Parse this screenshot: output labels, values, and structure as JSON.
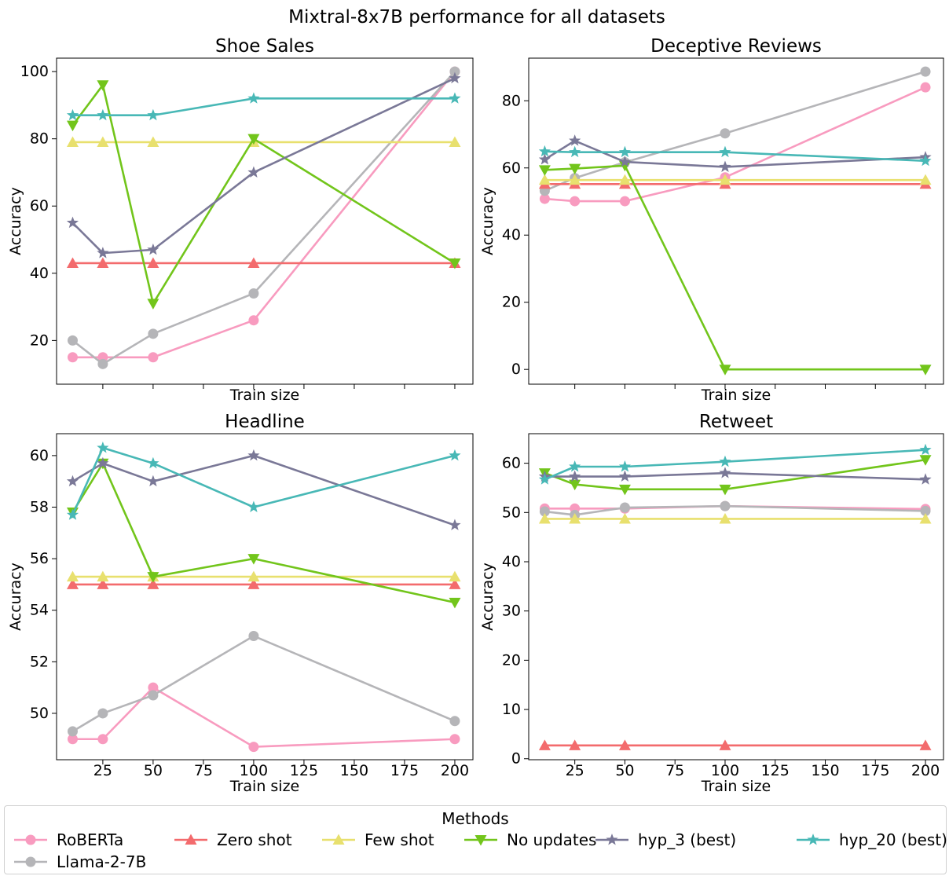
{
  "figure": {
    "title": "Mixtral-8x7B performance for all datasets"
  },
  "series_styles": [
    {
      "name": "RoBERTa",
      "color": "#f89bbf",
      "marker": "circle"
    },
    {
      "name": "Llama-2-7B",
      "color": "#b5b5b8",
      "marker": "circle"
    },
    {
      "name": "Zero shot",
      "color": "#f36b6d",
      "marker": "triangle-up"
    },
    {
      "name": "Few shot",
      "color": "#e8e06e",
      "marker": "triangle-up"
    },
    {
      "name": "No updates",
      "color": "#72c51b",
      "marker": "triangle-down"
    },
    {
      "name": "hyp_3 (best)",
      "color": "#7a7897",
      "marker": "star"
    },
    {
      "name": "hyp_20 (best)",
      "color": "#48b8b6",
      "marker": "star"
    }
  ],
  "legend": {
    "title": "Methods",
    "items": [
      "RoBERTa",
      "Zero shot",
      "Few shot",
      "No updates",
      "hyp_3 (best)",
      "hyp_20 (best)",
      "Llama-2-7B"
    ]
  },
  "chart_data": [
    {
      "type": "line",
      "title": "Shoe Sales",
      "xlabel": "Train size",
      "ylabel": "Accuracy",
      "x": [
        10,
        25,
        50,
        100,
        200
      ],
      "xlim": [
        2,
        209
      ],
      "ylim": [
        7,
        104
      ],
      "xticks": [],
      "yticks": [
        20,
        40,
        60,
        80,
        100
      ],
      "series": [
        {
          "name": "RoBERTa",
          "values": [
            15,
            15,
            15,
            26,
            100
          ]
        },
        {
          "name": "Llama-2-7B",
          "values": [
            20,
            13,
            22,
            34,
            100
          ]
        },
        {
          "name": "Zero shot",
          "values": [
            43,
            43,
            43,
            43,
            43
          ]
        },
        {
          "name": "Few shot",
          "values": [
            79,
            79,
            79,
            79,
            79
          ]
        },
        {
          "name": "No updates",
          "values": [
            84,
            96,
            31,
            80,
            43
          ]
        },
        {
          "name": "hyp_3 (best)",
          "values": [
            55,
            46,
            47,
            70,
            98
          ]
        },
        {
          "name": "hyp_20 (best)",
          "values": [
            87,
            87,
            87,
            92,
            92
          ]
        }
      ]
    },
    {
      "type": "line",
      "title": "Deceptive Reviews",
      "xlabel": "Train size",
      "ylabel": "Accuracy",
      "x": [
        10,
        25,
        50,
        100,
        200
      ],
      "xlim": [
        2,
        209
      ],
      "ylim": [
        -4.4,
        92.7
      ],
      "xticks": [],
      "yticks": [
        0,
        20,
        40,
        60,
        80
      ],
      "series": [
        {
          "name": "RoBERTa",
          "values": [
            50.8,
            50.1,
            50.1,
            57.2,
            84
          ]
        },
        {
          "name": "Llama-2-7B",
          "values": [
            53.2,
            57.0,
            61.7,
            70.3,
            88.7
          ]
        },
        {
          "name": "Zero shot",
          "values": [
            55.2,
            55.2,
            55.2,
            55.2,
            55.2
          ]
        },
        {
          "name": "Few shot",
          "values": [
            56.4,
            56.4,
            56.4,
            56.4,
            56.4
          ]
        },
        {
          "name": "No updates",
          "values": [
            59.4,
            59.8,
            60.7,
            0,
            0
          ]
        },
        {
          "name": "hyp_3 (best)",
          "values": [
            62.5,
            68.1,
            61.8,
            60.3,
            63.2
          ]
        },
        {
          "name": "hyp_20 (best)",
          "values": [
            64.9,
            64.7,
            64.7,
            64.7,
            62.1
          ]
        }
      ]
    },
    {
      "type": "line",
      "title": "Headline",
      "xlabel": "Train size",
      "ylabel": "Accuracy",
      "x": [
        10,
        25,
        50,
        100,
        200
      ],
      "xlim": [
        2,
        209
      ],
      "ylim": [
        48.2,
        60.85
      ],
      "xticks": [
        25,
        50,
        75,
        100,
        125,
        150,
        175,
        200
      ],
      "yticks": [
        50,
        52,
        54,
        56,
        58,
        60
      ],
      "series": [
        {
          "name": "RoBERTa",
          "values": [
            49.0,
            49.0,
            51.0,
            48.7,
            49.0
          ]
        },
        {
          "name": "Llama-2-7B",
          "values": [
            49.3,
            50.0,
            50.7,
            53.0,
            49.7
          ]
        },
        {
          "name": "Zero shot",
          "values": [
            55.0,
            55.0,
            55.0,
            55.0,
            55.0
          ]
        },
        {
          "name": "Few shot",
          "values": [
            55.3,
            55.3,
            55.3,
            55.3,
            55.3
          ]
        },
        {
          "name": "No updates",
          "values": [
            57.8,
            59.7,
            55.3,
            56.0,
            54.3
          ]
        },
        {
          "name": "hyp_3 (best)",
          "values": [
            59.0,
            59.7,
            59.0,
            60.0,
            57.3
          ]
        },
        {
          "name": "hyp_20 (best)",
          "values": [
            57.7,
            60.3,
            59.7,
            58.0,
            60.0
          ]
        }
      ]
    },
    {
      "type": "line",
      "title": "Retweet",
      "xlabel": "Train size",
      "ylabel": "Accuracy",
      "x": [
        10,
        25,
        50,
        100,
        200
      ],
      "xlim": [
        2,
        209
      ],
      "ylim": [
        -0.2,
        66.0
      ],
      "xticks": [
        25,
        50,
        75,
        100,
        125,
        150,
        175,
        200
      ],
      "yticks": [
        0,
        10,
        20,
        30,
        40,
        50,
        60
      ],
      "series": [
        {
          "name": "RoBERTa",
          "values": [
            50.8,
            50.8,
            50.8,
            51.3,
            50.7
          ]
        },
        {
          "name": "Llama-2-7B",
          "values": [
            50.2,
            49.5,
            51.0,
            51.3,
            50.3
          ]
        },
        {
          "name": "Zero shot",
          "values": [
            2.7,
            2.7,
            2.7,
            2.7,
            2.7
          ]
        },
        {
          "name": "Few shot",
          "values": [
            48.7,
            48.7,
            48.7,
            48.7,
            48.7
          ]
        },
        {
          "name": "No updates",
          "values": [
            58.0,
            55.7,
            54.7,
            54.7,
            60.7
          ]
        },
        {
          "name": "hyp_3 (best)",
          "values": [
            57.3,
            57.3,
            57.3,
            58.0,
            56.7
          ]
        },
        {
          "name": "hyp_20 (best)",
          "values": [
            56.7,
            59.3,
            59.3,
            60.3,
            62.7
          ]
        }
      ]
    }
  ]
}
